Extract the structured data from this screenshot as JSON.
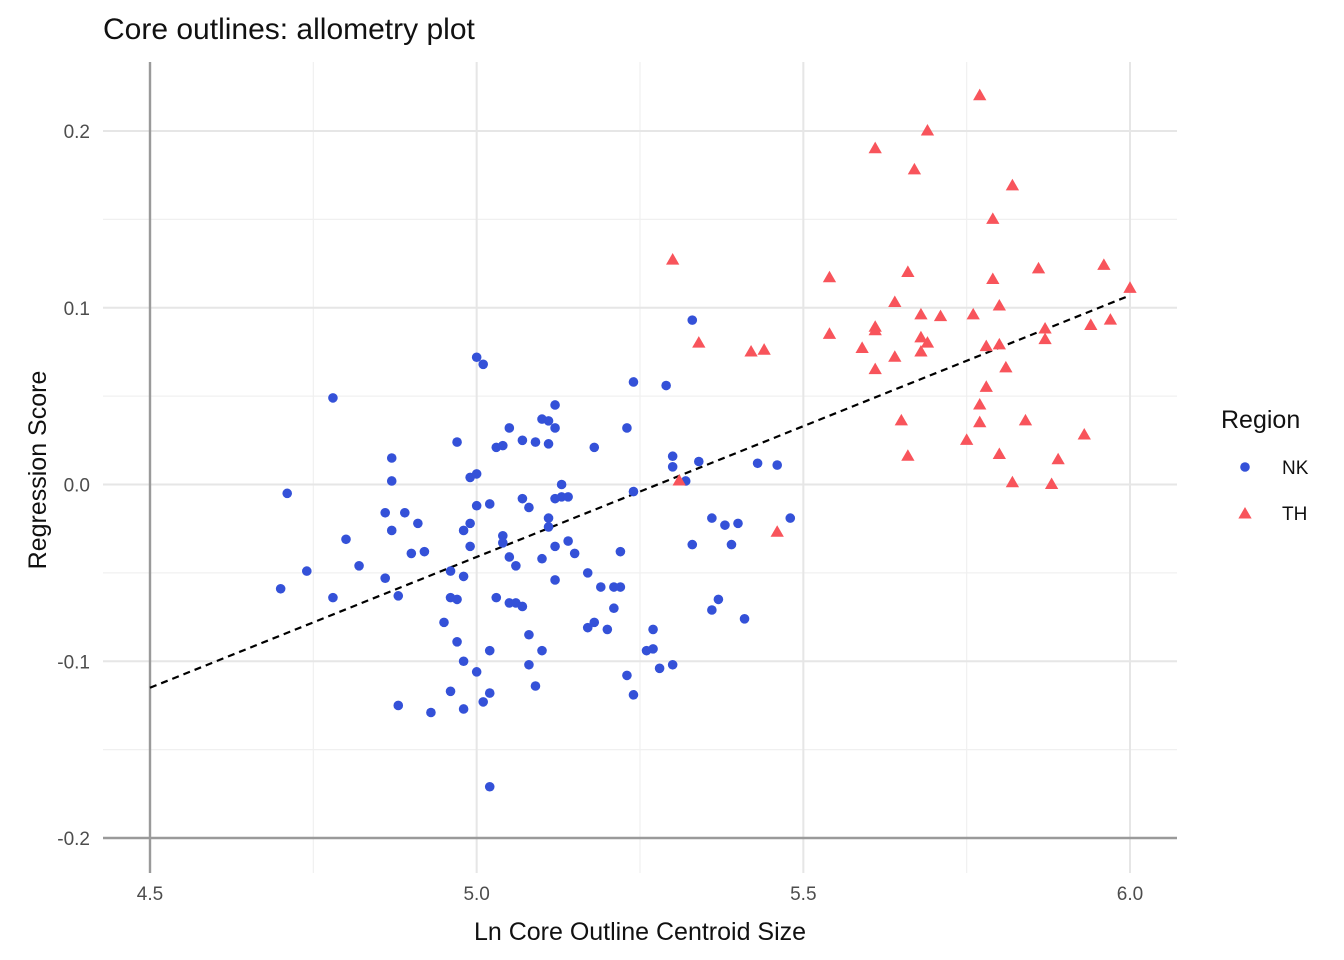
{
  "chart_data": {
    "type": "scatter",
    "title": "Core outlines: allometry plot",
    "xlabel": "Ln Core Outline Centroid Size",
    "ylabel": "Regression Score",
    "xlim": [
      4.45,
      6.07
    ],
    "ylim": [
      -0.22,
      0.235
    ],
    "x_ticks": [
      4.5,
      5.0,
      5.5,
      6.0
    ],
    "x_tick_labels": [
      "4.5",
      "5.0",
      "5.5",
      "6.0"
    ],
    "y_ticks": [
      -0.2,
      -0.1,
      0.0,
      0.1,
      0.2
    ],
    "y_tick_labels": [
      "-0.2",
      "-0.1",
      "0.0",
      "0.1",
      "0.2"
    ],
    "grid": true,
    "legend": {
      "title": "Region",
      "position": "right"
    },
    "fit_line": {
      "style": "dashed",
      "color": "#000000",
      "x": [
        4.5,
        6.0
      ],
      "y": [
        -0.115,
        0.107
      ]
    },
    "series": [
      {
        "name": "NK",
        "marker": "circle",
        "color": "#3451D8",
        "points": [
          [
            4.7,
            -0.059
          ],
          [
            4.71,
            -0.005
          ],
          [
            4.74,
            -0.049
          ],
          [
            4.78,
            -0.064
          ],
          [
            4.78,
            0.049
          ],
          [
            4.8,
            -0.031
          ],
          [
            4.82,
            -0.046
          ],
          [
            4.86,
            -0.053
          ],
          [
            4.86,
            -0.016
          ],
          [
            4.87,
            0.002
          ],
          [
            4.87,
            -0.026
          ],
          [
            4.87,
            0.015
          ],
          [
            4.88,
            -0.063
          ],
          [
            4.88,
            -0.125
          ],
          [
            4.89,
            -0.016
          ],
          [
            4.9,
            -0.039
          ],
          [
            4.91,
            -0.022
          ],
          [
            4.92,
            -0.038
          ],
          [
            4.93,
            -0.129
          ],
          [
            4.95,
            -0.078
          ],
          [
            4.96,
            -0.049
          ],
          [
            4.96,
            -0.064
          ],
          [
            4.96,
            -0.117
          ],
          [
            4.97,
            0.024
          ],
          [
            4.97,
            -0.065
          ],
          [
            4.97,
            -0.089
          ],
          [
            4.98,
            -0.052
          ],
          [
            4.98,
            -0.1
          ],
          [
            4.98,
            -0.026
          ],
          [
            4.98,
            -0.127
          ],
          [
            4.99,
            0.004
          ],
          [
            4.99,
            -0.035
          ],
          [
            4.99,
            -0.022
          ],
          [
            5.0,
            -0.106
          ],
          [
            5.0,
            -0.012
          ],
          [
            5.0,
            0.072
          ],
          [
            5.0,
            0.006
          ],
          [
            5.01,
            0.068
          ],
          [
            5.01,
            -0.123
          ],
          [
            5.02,
            -0.011
          ],
          [
            5.02,
            -0.118
          ],
          [
            5.02,
            -0.171
          ],
          [
            5.02,
            -0.094
          ],
          [
            5.03,
            -0.064
          ],
          [
            5.03,
            0.021
          ],
          [
            5.04,
            0.022
          ],
          [
            5.04,
            -0.029
          ],
          [
            5.04,
            -0.033
          ],
          [
            5.05,
            0.032
          ],
          [
            5.05,
            -0.041
          ],
          [
            5.05,
            -0.067
          ],
          [
            5.06,
            -0.046
          ],
          [
            5.06,
            -0.067
          ],
          [
            5.07,
            0.025
          ],
          [
            5.07,
            -0.008
          ],
          [
            5.07,
            -0.069
          ],
          [
            5.08,
            -0.013
          ],
          [
            5.08,
            -0.085
          ],
          [
            5.08,
            -0.102
          ],
          [
            5.09,
            -0.114
          ],
          [
            5.09,
            0.024
          ],
          [
            5.1,
            -0.042
          ],
          [
            5.1,
            -0.094
          ],
          [
            5.1,
            0.037
          ],
          [
            5.11,
            0.036
          ],
          [
            5.11,
            0.023
          ],
          [
            5.11,
            -0.019
          ],
          [
            5.11,
            -0.024
          ],
          [
            5.12,
            0.045
          ],
          [
            5.12,
            0.032
          ],
          [
            5.12,
            -0.008
          ],
          [
            5.12,
            -0.035
          ],
          [
            5.12,
            -0.054
          ],
          [
            5.13,
            0.0
          ],
          [
            5.13,
            -0.007
          ],
          [
            5.14,
            -0.007
          ],
          [
            5.14,
            -0.032
          ],
          [
            5.15,
            -0.039
          ],
          [
            5.17,
            -0.05
          ],
          [
            5.17,
            -0.081
          ],
          [
            5.18,
            0.021
          ],
          [
            5.18,
            -0.078
          ],
          [
            5.19,
            -0.058
          ],
          [
            5.2,
            -0.082
          ],
          [
            5.21,
            -0.058
          ],
          [
            5.21,
            -0.07
          ],
          [
            5.22,
            -0.058
          ],
          [
            5.22,
            -0.038
          ],
          [
            5.23,
            0.032
          ],
          [
            5.23,
            -0.108
          ],
          [
            5.24,
            -0.004
          ],
          [
            5.24,
            -0.119
          ],
          [
            5.24,
            0.058
          ],
          [
            5.26,
            -0.094
          ],
          [
            5.27,
            -0.093
          ],
          [
            5.27,
            -0.082
          ],
          [
            5.28,
            -0.104
          ],
          [
            5.29,
            0.056
          ],
          [
            5.3,
            0.01
          ],
          [
            5.3,
            0.016
          ],
          [
            5.3,
            -0.102
          ],
          [
            5.32,
            0.002
          ],
          [
            5.33,
            -0.034
          ],
          [
            5.33,
            0.093
          ],
          [
            5.34,
            0.013
          ],
          [
            5.36,
            -0.071
          ],
          [
            5.36,
            -0.019
          ],
          [
            5.37,
            -0.065
          ],
          [
            5.38,
            -0.023
          ],
          [
            5.39,
            -0.034
          ],
          [
            5.4,
            -0.022
          ],
          [
            5.41,
            -0.076
          ],
          [
            5.43,
            0.012
          ],
          [
            5.46,
            0.011
          ],
          [
            5.48,
            -0.019
          ]
        ]
      },
      {
        "name": "TH",
        "marker": "triangle",
        "color": "#F8545B",
        "points": [
          [
            5.3,
            0.127
          ],
          [
            5.31,
            0.002
          ],
          [
            5.34,
            0.08
          ],
          [
            5.42,
            0.075
          ],
          [
            5.44,
            0.076
          ],
          [
            5.46,
            -0.027
          ],
          [
            5.54,
            0.085
          ],
          [
            5.54,
            0.117
          ],
          [
            5.59,
            0.077
          ],
          [
            5.61,
            0.089
          ],
          [
            5.61,
            0.087
          ],
          [
            5.61,
            0.065
          ],
          [
            5.61,
            0.19
          ],
          [
            5.64,
            0.103
          ],
          [
            5.64,
            0.072
          ],
          [
            5.65,
            0.036
          ],
          [
            5.66,
            0.12
          ],
          [
            5.66,
            0.016
          ],
          [
            5.67,
            0.178
          ],
          [
            5.68,
            0.096
          ],
          [
            5.68,
            0.083
          ],
          [
            5.68,
            0.075
          ],
          [
            5.69,
            0.08
          ],
          [
            5.69,
            0.2
          ],
          [
            5.71,
            0.095
          ],
          [
            5.75,
            0.025
          ],
          [
            5.76,
            0.096
          ],
          [
            5.77,
            0.22
          ],
          [
            5.77,
            0.045
          ],
          [
            5.77,
            0.035
          ],
          [
            5.78,
            0.078
          ],
          [
            5.78,
            0.055
          ],
          [
            5.79,
            0.116
          ],
          [
            5.79,
            0.15
          ],
          [
            5.8,
            0.101
          ],
          [
            5.8,
            0.079
          ],
          [
            5.8,
            0.017
          ],
          [
            5.81,
            0.066
          ],
          [
            5.82,
            0.001
          ],
          [
            5.82,
            0.169
          ],
          [
            5.84,
            0.036
          ],
          [
            5.86,
            0.122
          ],
          [
            5.87,
            0.088
          ],
          [
            5.87,
            0.082
          ],
          [
            5.88,
            0.0
          ],
          [
            5.89,
            0.014
          ],
          [
            5.93,
            0.028
          ],
          [
            5.94,
            0.09
          ],
          [
            5.96,
            0.124
          ],
          [
            5.97,
            0.093
          ],
          [
            6.0,
            0.111
          ]
        ]
      }
    ]
  }
}
